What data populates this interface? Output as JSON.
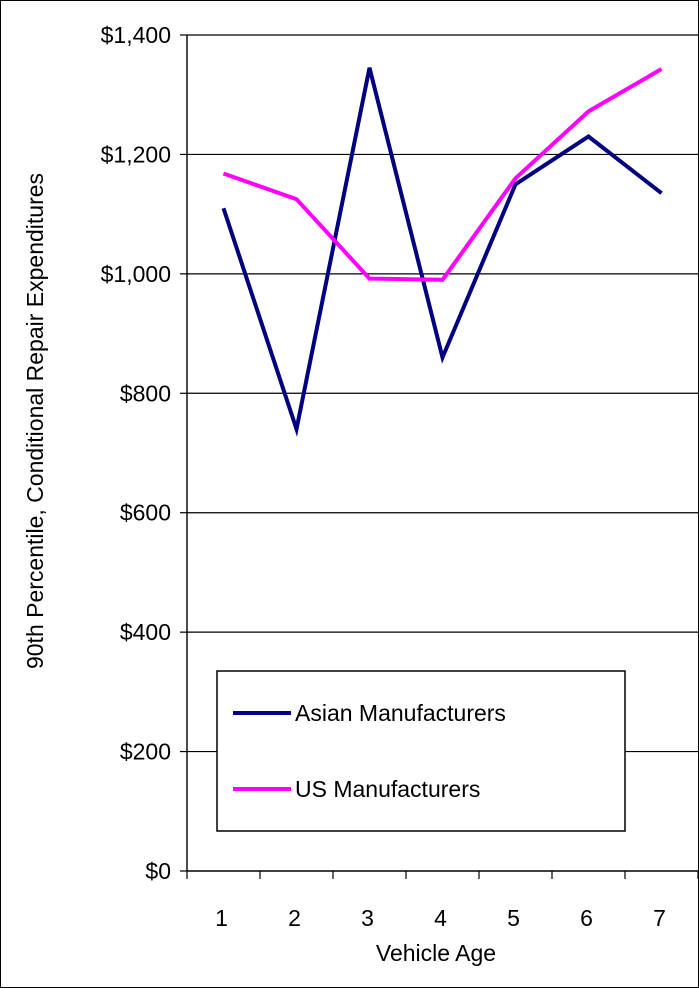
{
  "chart_data": {
    "type": "line",
    "title": "",
    "xlabel": "Vehicle Age",
    "ylabel": "90th Percentile, Conditional Repair Expenditures",
    "categories": [
      "1",
      "2",
      "3",
      "4",
      "5",
      "6",
      "7"
    ],
    "y_ticks": [
      "$0",
      "$200",
      "$400",
      "$600",
      "$800",
      "$1,000",
      "$1,200",
      "$1,400"
    ],
    "ylim": [
      0,
      1400
    ],
    "grid": true,
    "legend_position": "bottom-left",
    "series": [
      {
        "name": "Asian Manufacturers",
        "color": "#000080",
        "values": [
          1110,
          740,
          1345,
          860,
          1150,
          1230,
          1135
        ]
      },
      {
        "name": "US Manufacturers",
        "color": "#ff00ff",
        "values": [
          1168,
          1125,
          992,
          990,
          1160,
          1272,
          1343
        ]
      }
    ]
  }
}
